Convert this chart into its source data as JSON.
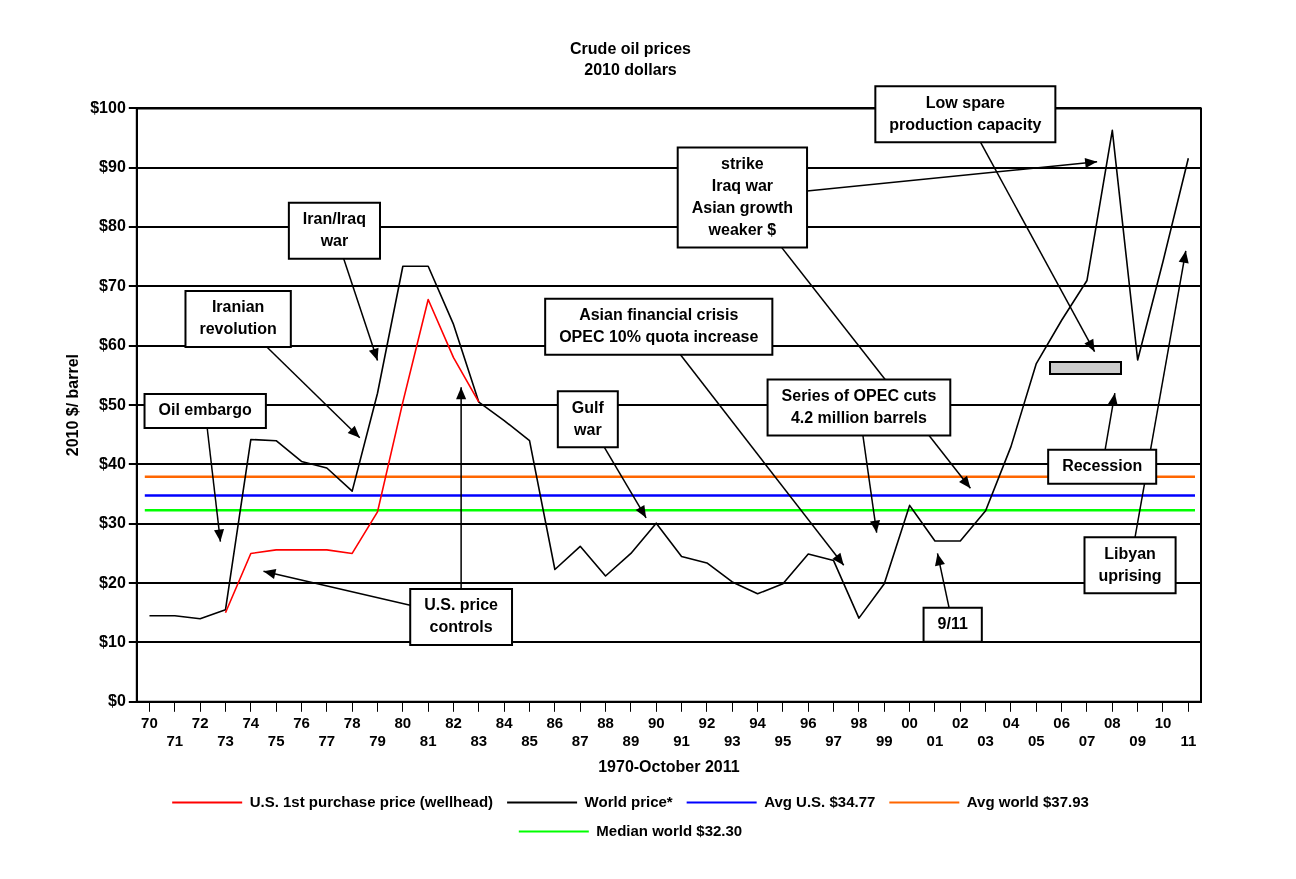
{
  "chart_data": {
    "type": "line",
    "title": "Crude oil prices",
    "subtitle": "2010 dollars",
    "xlabel": "1970-October 2011",
    "ylabel": "2010 $/ barrel",
    "categories": [
      "70",
      "71",
      "72",
      "73",
      "74",
      "75",
      "76",
      "77",
      "78",
      "79",
      "80",
      "81",
      "82",
      "83",
      "84",
      "85",
      "86",
      "87",
      "88",
      "89",
      "90",
      "91",
      "92",
      "93",
      "94",
      "95",
      "96",
      "97",
      "98",
      "99",
      "00",
      "01",
      "02",
      "03",
      "04",
      "05",
      "06",
      "07",
      "08",
      "09",
      "10",
      "11"
    ],
    "series": [
      {
        "name": "U.S. 1st purchase price (wellhead)",
        "color": "#ff0000",
        "values": [
          null,
          null,
          null,
          15,
          25,
          25.6,
          25.6,
          25.6,
          25,
          32,
          50.5,
          67.8,
          58,
          50.5,
          null,
          null,
          null,
          null,
          null,
          null,
          null,
          null,
          null,
          null,
          null,
          null,
          null,
          null,
          null,
          null,
          null,
          null,
          null,
          null,
          null,
          null,
          null,
          null,
          null,
          null,
          null,
          null
        ]
      },
      {
        "name": "World price*",
        "color": "#000000",
        "values": [
          14.5,
          14.5,
          14,
          15.5,
          44.2,
          44,
          40.5,
          39.4,
          35.5,
          52,
          73.4,
          73.4,
          63.6,
          50.5,
          47.4,
          44,
          22.3,
          26.2,
          21.2,
          25,
          30.1,
          24.5,
          23.4,
          20.2,
          18.2,
          19.9,
          24.9,
          23.8,
          14.1,
          19.9,
          33.1,
          27.1,
          27.1,
          32.2,
          43,
          57,
          64.3,
          71,
          96.3,
          57.6,
          74.2,
          91.6
        ]
      }
    ],
    "ref_lines": [
      {
        "axis": "y",
        "value": 34.77,
        "label": "Avg U.S. $34.77",
        "color": "#0000ff"
      },
      {
        "axis": "y",
        "value": 37.93,
        "label": "Avg world $37.93",
        "color": "#ff6600"
      },
      {
        "axis": "y",
        "value": 32.3,
        "label": "Median world $32.30",
        "color": "#00ff00"
      }
    ],
    "ylim": [
      0,
      100
    ],
    "yticks": [
      {
        "value": 0,
        "label": "$0"
      },
      {
        "value": 10,
        "label": "$10"
      },
      {
        "value": 20,
        "label": "$20"
      },
      {
        "value": 30,
        "label": "$30"
      },
      {
        "value": 40,
        "label": "$40"
      },
      {
        "value": 50,
        "label": "$50"
      },
      {
        "value": 60,
        "label": "$60"
      },
      {
        "value": 70,
        "label": "$70"
      },
      {
        "value": 80,
        "label": "$80"
      },
      {
        "value": 90,
        "label": "$90"
      },
      {
        "value": 100,
        "label": "$100"
      }
    ],
    "grid": "y",
    "legend": "bottom",
    "annotations": [
      "Oil embargo",
      "Iranian revolution",
      "Iran/Iraq war",
      "U.S. price controls",
      "Asian financial crisis OPEC 10% quota increase",
      "Gulf war",
      "Series of OPEC cuts 4.2 million barrels",
      "strike Iraq war Asian growth weaker $",
      "Low spare production capacity",
      "Recession",
      "Libyan uprising",
      "9/11"
    ]
  }
}
